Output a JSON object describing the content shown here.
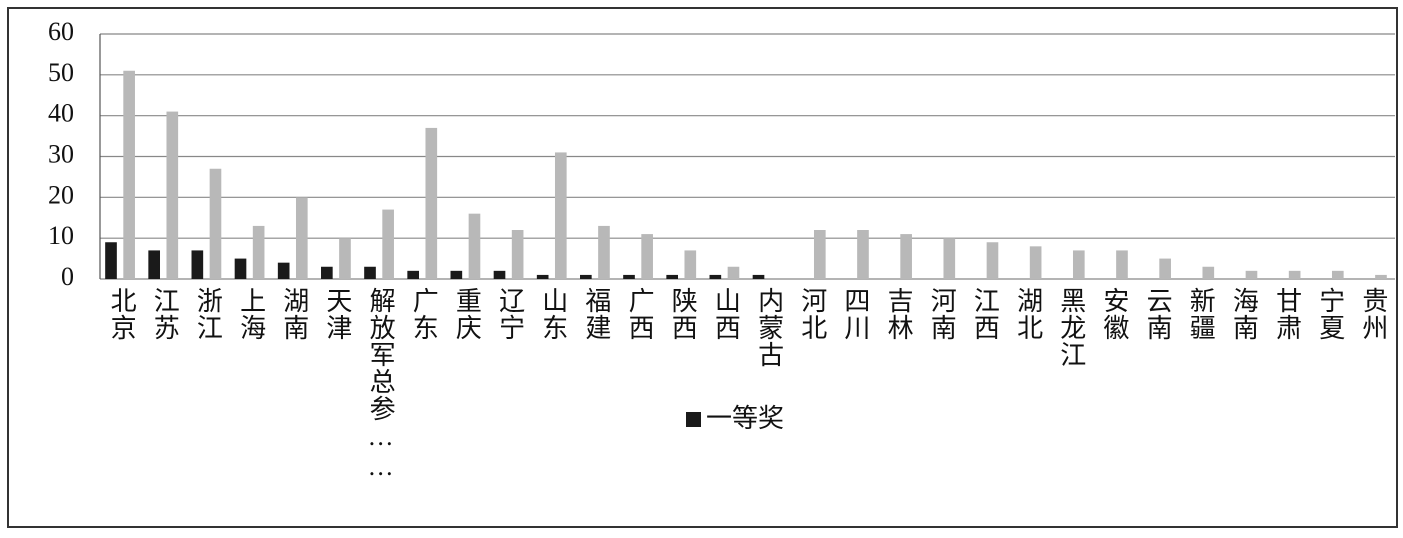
{
  "chart_data": {
    "type": "bar",
    "categories": [
      "北京",
      "江苏",
      "浙江",
      "上海",
      "湖南",
      "天津",
      "解放军总参……",
      "广东",
      "重庆",
      "辽宁",
      "山东",
      "福建",
      "广西",
      "陕西",
      "山西",
      "内蒙古",
      "河北",
      "四川",
      "吉林",
      "河南",
      "江西",
      "湖北",
      "黑龙江",
      "安徽",
      "云南",
      "新疆",
      "海南",
      "甘肃",
      "宁夏",
      "贵州"
    ],
    "series": [
      {
        "name": "一等奖",
        "color": "#1a1a1a",
        "values": [
          9,
          7,
          7,
          5,
          4,
          3,
          3,
          2,
          2,
          2,
          1,
          1,
          1,
          1,
          1,
          1,
          0,
          0,
          0,
          0,
          0,
          0,
          0,
          0,
          0,
          0,
          0,
          0,
          0,
          0
        ]
      },
      {
        "color": "#b8b8b8",
        "values": [
          51,
          41,
          27,
          13,
          20,
          10,
          17,
          37,
          16,
          12,
          31,
          13,
          11,
          7,
          3,
          0,
          12,
          12,
          11,
          10,
          9,
          8,
          7,
          7,
          5,
          3,
          2,
          2,
          2,
          1
        ]
      }
    ],
    "ylim": [
      0,
      60
    ],
    "yticks": [
      0,
      10,
      20,
      30,
      40,
      50,
      60
    ],
    "grid": true
  }
}
